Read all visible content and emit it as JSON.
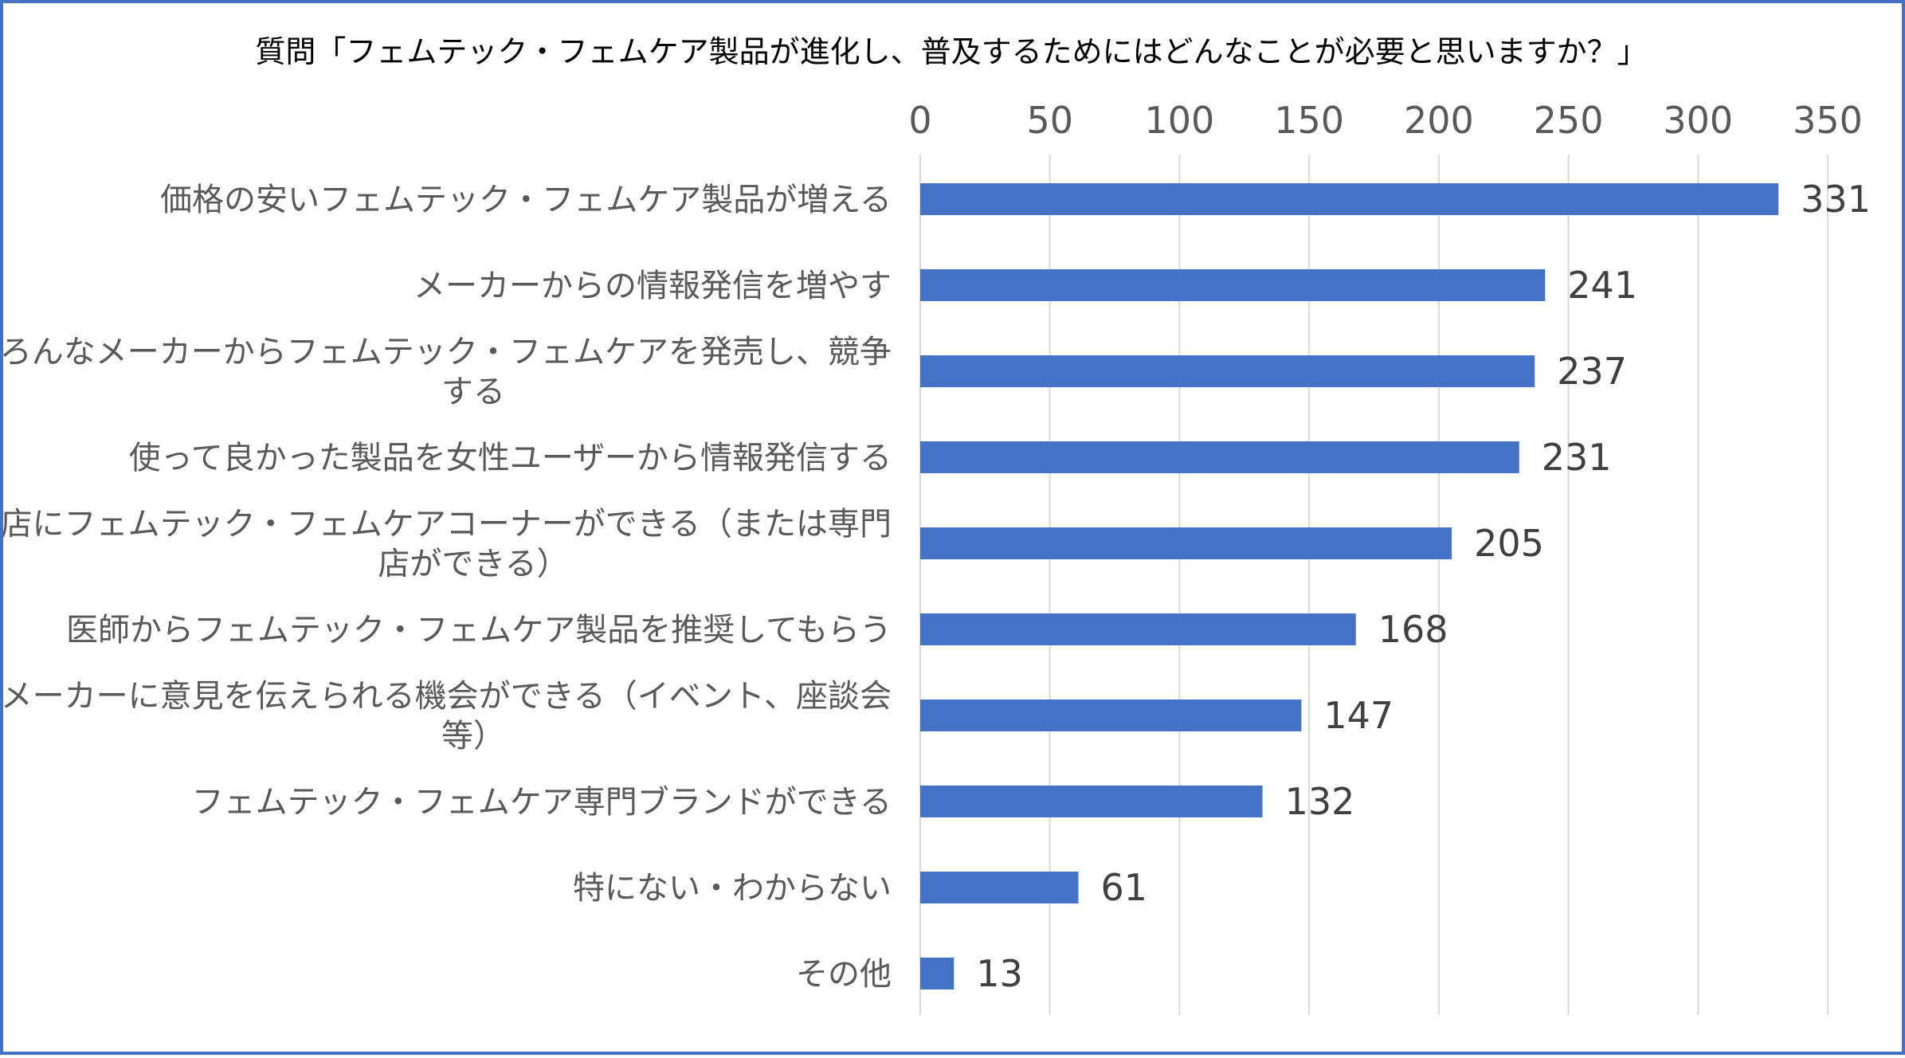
{
  "chart_data": {
    "type": "bar",
    "orientation": "horizontal",
    "title": "質問「フェムテック・フェムケア製品が進化し、普及するためにはどんなことが必要と思いますか？」",
    "xlabel": "",
    "ylabel": "",
    "xlim": [
      0,
      350
    ],
    "ticks": [
      0,
      50,
      100,
      150,
      200,
      250,
      300,
      350
    ],
    "tick_position": "top",
    "grid": true,
    "legend": "none",
    "bar_color": "#4472c4",
    "categories": [
      [
        "価格の安いフェムテック・フェムケア製品が増える"
      ],
      [
        "メーカーからの情報発信を増やす"
      ],
      [
        "いろんなメーカーからフェムテック・フェムケアを発売し、競争",
        "する"
      ],
      [
        "使って良かった製品を女性ユーザーから情報発信する"
      ],
      [
        "お店にフェムテック・フェムケアコーナーができる（または専門",
        "店ができる）"
      ],
      [
        "医師からフェムテック・フェムケア製品を推奨してもらう"
      ],
      [
        "メーカーに意見を伝えられる機会ができる（イベント、座談会",
        "等）"
      ],
      [
        "フェムテック・フェムケア専門ブランドができる"
      ],
      [
        "特にない・わからない"
      ],
      [
        "その他"
      ]
    ],
    "values": [
      331,
      241,
      237,
      231,
      205,
      168,
      147,
      132,
      61,
      13
    ]
  }
}
